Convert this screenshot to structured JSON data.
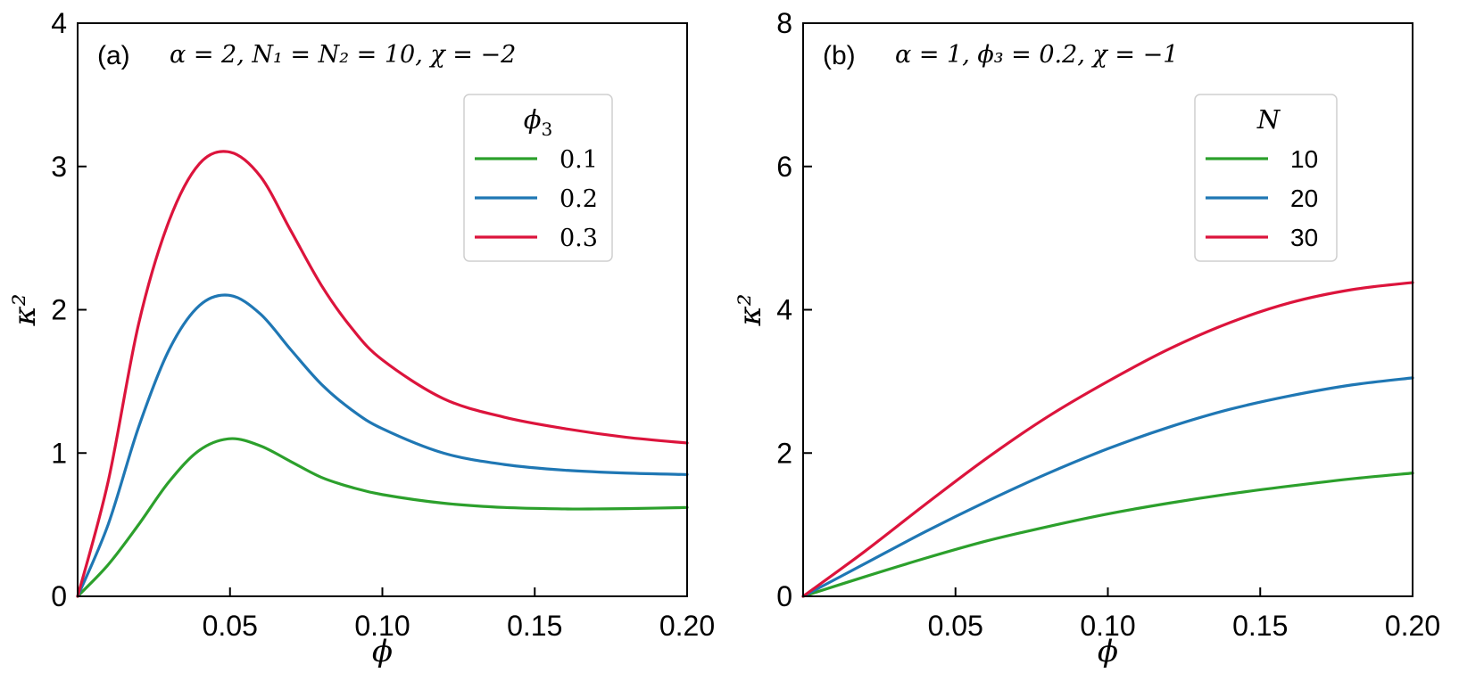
{
  "figure": {
    "colors": {
      "green": "#2ca02c",
      "blue": "#1f77b4",
      "red": "#dc143c"
    }
  },
  "chart_data": [
    {
      "type": "line",
      "panel": "(a)",
      "params": "α = 2,  N₁ = N₂ = 10,  χ = −2",
      "xlabel": "ϕ",
      "ylabel": "κ²",
      "xlim": [
        0,
        0.2
      ],
      "ylim": [
        0,
        4
      ],
      "xticks": [
        0.05,
        0.1,
        0.15,
        0.2
      ],
      "xtick_labels": [
        "0.05",
        "0.10",
        "0.15",
        "0.20"
      ],
      "yticks": [
        0,
        1,
        2,
        3,
        4
      ],
      "ytick_labels": [
        "0",
        "1",
        "2",
        "3",
        "4"
      ],
      "legend": {
        "title": "ϕ3",
        "title_base": "ϕ",
        "title_sub": "3",
        "placement": "top-right"
      },
      "series": [
        {
          "name": "0.1",
          "color": "#2ca02c",
          "x": [
            0,
            0.01,
            0.02,
            0.03,
            0.04,
            0.05,
            0.06,
            0.07,
            0.08,
            0.09,
            0.1,
            0.12,
            0.14,
            0.16,
            0.17,
            0.18,
            0.2
          ],
          "y": [
            0,
            0.22,
            0.5,
            0.8,
            1.02,
            1.1,
            1.05,
            0.94,
            0.83,
            0.76,
            0.71,
            0.65,
            0.62,
            0.61,
            0.61,
            0.612,
            0.62
          ]
        },
        {
          "name": "0.2",
          "color": "#1f77b4",
          "x": [
            0,
            0.01,
            0.02,
            0.03,
            0.04,
            0.05,
            0.06,
            0.07,
            0.08,
            0.09,
            0.1,
            0.12,
            0.14,
            0.16,
            0.18,
            0.2
          ],
          "y": [
            0,
            0.5,
            1.18,
            1.72,
            2.03,
            2.1,
            1.97,
            1.72,
            1.48,
            1.3,
            1.17,
            1.0,
            0.92,
            0.88,
            0.86,
            0.85
          ]
        },
        {
          "name": "0.3",
          "color": "#dc143c",
          "x": [
            0,
            0.01,
            0.02,
            0.03,
            0.04,
            0.05,
            0.06,
            0.07,
            0.08,
            0.09,
            0.1,
            0.12,
            0.14,
            0.16,
            0.18,
            0.2
          ],
          "y": [
            0,
            0.8,
            1.9,
            2.62,
            3.02,
            3.1,
            2.93,
            2.55,
            2.17,
            1.87,
            1.65,
            1.38,
            1.25,
            1.17,
            1.11,
            1.07
          ]
        }
      ]
    },
    {
      "type": "line",
      "panel": "(b)",
      "params": "α = 1,  ϕ₃ = 0.2,  χ = −1",
      "xlabel": "ϕ",
      "ylabel": "κ²",
      "xlim": [
        0,
        0.2
      ],
      "ylim": [
        0,
        8
      ],
      "xticks": [
        0.05,
        0.1,
        0.15,
        0.2
      ],
      "xtick_labels": [
        "0.05",
        "0.10",
        "0.15",
        "0.20"
      ],
      "yticks": [
        0,
        2,
        4,
        6,
        8
      ],
      "ytick_labels": [
        "0",
        "2",
        "4",
        "6",
        "8"
      ],
      "legend": {
        "title": "N",
        "title_base": "N",
        "title_sub": "",
        "placement": "top-right"
      },
      "series": [
        {
          "name": "10",
          "color": "#2ca02c",
          "x": [
            0,
            0.02,
            0.04,
            0.06,
            0.08,
            0.1,
            0.12,
            0.14,
            0.16,
            0.18,
            0.2
          ],
          "y": [
            0,
            0.27,
            0.53,
            0.77,
            0.97,
            1.15,
            1.3,
            1.43,
            1.54,
            1.64,
            1.72
          ]
        },
        {
          "name": "20",
          "color": "#1f77b4",
          "x": [
            0,
            0.02,
            0.04,
            0.06,
            0.08,
            0.1,
            0.12,
            0.14,
            0.16,
            0.18,
            0.2
          ],
          "y": [
            0,
            0.45,
            0.9,
            1.32,
            1.71,
            2.06,
            2.36,
            2.61,
            2.8,
            2.95,
            3.05
          ]
        },
        {
          "name": "30",
          "color": "#dc143c",
          "x": [
            0,
            0.02,
            0.04,
            0.06,
            0.08,
            0.1,
            0.12,
            0.14,
            0.16,
            0.18,
            0.2
          ],
          "y": [
            0,
            0.62,
            1.28,
            1.92,
            2.5,
            3.0,
            3.45,
            3.82,
            4.1,
            4.28,
            4.38
          ]
        }
      ]
    }
  ]
}
